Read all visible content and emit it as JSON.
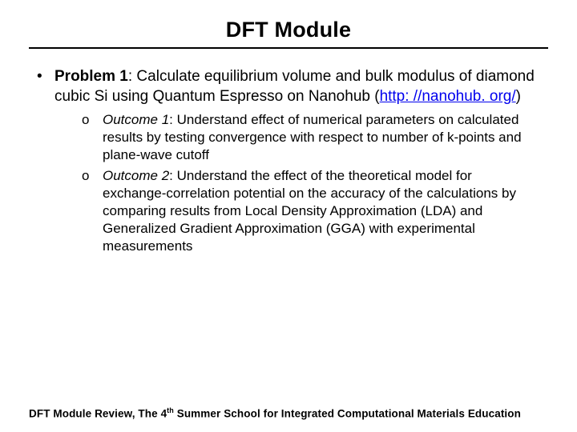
{
  "title": "DFT Module",
  "problem": {
    "label": "Problem 1",
    "text_before_link": ":  Calculate equilibrium volume and bulk modulus of diamond cubic Si using Quantum Espresso on Nanohub (",
    "link_text": "http: //nanohub. org/",
    "text_after_link": ")"
  },
  "outcomes": [
    {
      "label": "Outcome 1",
      "text": ":  Understand effect of numerical parameters on calculated results by testing convergence with respect to number of k-points and plane-wave cutoff"
    },
    {
      "label": "Outcome 2",
      "text": ":  Understand the effect of the theoretical model for exchange-correlation potential on the accuracy of the calculations by comparing results from Local Density Approximation (LDA) and Generalized Gradient Approximation (GGA) with experimental measurements"
    }
  ],
  "footer": {
    "prefix": "DFT Module Review, The 4",
    "sup": "th",
    "suffix": " Summer School for Integrated Computational Materials Education"
  },
  "bullets": {
    "lvl1": "•",
    "lvl2": "o"
  }
}
